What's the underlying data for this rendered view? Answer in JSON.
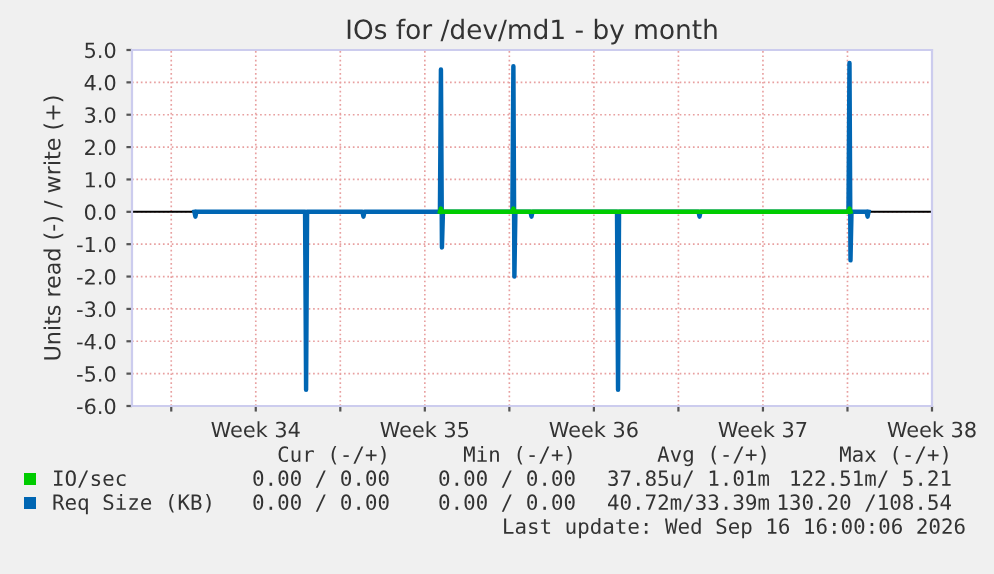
{
  "chart_data": {
    "type": "line",
    "title": "IOs for /dev/md1 - by month",
    "ylabel": "Units read (-) / write (+)",
    "xlim": [
      "2026-08-15T09:00",
      "2026-09-17T12:00"
    ],
    "xticks": [
      {
        "value": "2026-08-17",
        "label": null
      },
      {
        "value": "2026-08-20T12:00",
        "label": "Week 34"
      },
      {
        "value": "2026-08-24",
        "label": null
      },
      {
        "value": "2026-08-27T12:00",
        "label": "Week 35"
      },
      {
        "value": "2026-08-31",
        "label": null
      },
      {
        "value": "2026-09-03T12:00",
        "label": "Week 36"
      },
      {
        "value": "2026-09-07",
        "label": null
      },
      {
        "value": "2026-09-10T12:00",
        "label": "Week 37"
      },
      {
        "value": "2026-09-14",
        "label": null
      },
      {
        "value": "2026-09-17T12:00",
        "label": "Week 38"
      }
    ],
    "ylim": [
      -6,
      5
    ],
    "yticks": [
      {
        "value": -6,
        "label": "-6.0"
      },
      {
        "value": -5,
        "label": "-5.0"
      },
      {
        "value": -4,
        "label": "-4.0"
      },
      {
        "value": -3,
        "label": "-3.0"
      },
      {
        "value": -2,
        "label": "-2.0"
      },
      {
        "value": -1,
        "label": "-1.0"
      },
      {
        "value": 0,
        "label": "0.0"
      },
      {
        "value": 1,
        "label": "1.0"
      },
      {
        "value": 2,
        "label": "2.0"
      },
      {
        "value": 3,
        "label": "3.0"
      },
      {
        "value": 4,
        "label": "4.0"
      },
      {
        "value": 5,
        "label": "5.0"
      }
    ],
    "grid": true,
    "legend": "bottom",
    "marker": "none",
    "line_style": "solid",
    "ref_lines": [
      {
        "axis": "y",
        "value": 0,
        "label": null,
        "color": "#000000"
      }
    ],
    "series": [
      {
        "name": "IO/sec",
        "color": "#00cc00",
        "x": [
          "2026-08-28T03:00",
          "2026-08-28T04:00",
          "2026-08-28T05:00",
          "2026-08-29T00:00",
          "2026-08-31T03:00",
          "2026-08-31T04:00",
          "2026-08-31T05:00",
          "2026-09-01T00:00",
          "2026-09-14T01:00",
          "2026-09-14T02:00",
          "2026-09-14T03:00"
        ],
        "values": [
          0,
          0.1,
          0,
          0,
          0,
          0.1,
          0,
          0,
          0,
          0.1,
          0
        ]
      },
      {
        "name": "Req Size (KB)",
        "color": "#0066b3",
        "x": [
          "2026-08-17T23:00",
          "2026-08-18T00:00",
          "2026-08-18T01:00",
          "2026-08-20T00:00",
          "2026-08-22T13:00",
          "2026-08-22T14:00",
          "2026-08-22T15:00",
          "2026-08-23T00:00",
          "2026-08-24T22:00",
          "2026-08-24T23:00",
          "2026-08-25T00:00",
          "2026-08-26T00:00",
          "2026-08-28T03:00",
          "2026-08-28T04:00",
          "2026-08-28T05:00",
          "2026-08-28T06:00",
          "2026-08-29T00:00",
          "2026-08-31T03:00",
          "2026-08-31T04:00",
          "2026-08-31T05:00",
          "2026-08-31T06:00",
          "2026-08-31T12:00",
          "2026-08-31T21:00",
          "2026-08-31T22:00",
          "2026-08-31T23:00",
          "2026-09-02T00:00",
          "2026-09-04T11:00",
          "2026-09-04T12:00",
          "2026-09-04T13:00",
          "2026-09-05T00:00",
          "2026-09-07T20:00",
          "2026-09-07T21:00",
          "2026-09-07T22:00",
          "2026-09-09T00:00",
          "2026-09-14T01:00",
          "2026-09-14T02:00",
          "2026-09-14T03:00",
          "2026-09-14T04:00",
          "2026-09-14T12:00",
          "2026-09-14T19:00",
          "2026-09-14T20:00",
          "2026-09-14T21:00"
        ],
        "values": [
          0,
          -0.15,
          0,
          0,
          0,
          -5.5,
          0,
          0,
          0,
          -0.15,
          0,
          0,
          0,
          4.4,
          -1.1,
          0,
          0,
          0,
          4.5,
          -2.0,
          0,
          0,
          0,
          -0.15,
          0,
          0,
          0,
          -5.5,
          0,
          0,
          0,
          -0.15,
          0,
          0,
          0,
          4.6,
          -1.5,
          0,
          0,
          0,
          -0.15,
          0
        ]
      }
    ],
    "annotations": [
      "Cur (-/+)",
      "Min (-/+)",
      "Avg (-/+)",
      "Max (-/+)",
      "0.00 / 0.00",
      "0.00 / 0.00",
      "37.85u/ 1.01m",
      "122.51m/ 5.21",
      "0.00 / 0.00",
      "0.00 / 0.00",
      "40.72m/33.39m",
      "130.20 /108.54",
      "Last update: Wed Sep 16 16:00:06 2026"
    ]
  }
}
